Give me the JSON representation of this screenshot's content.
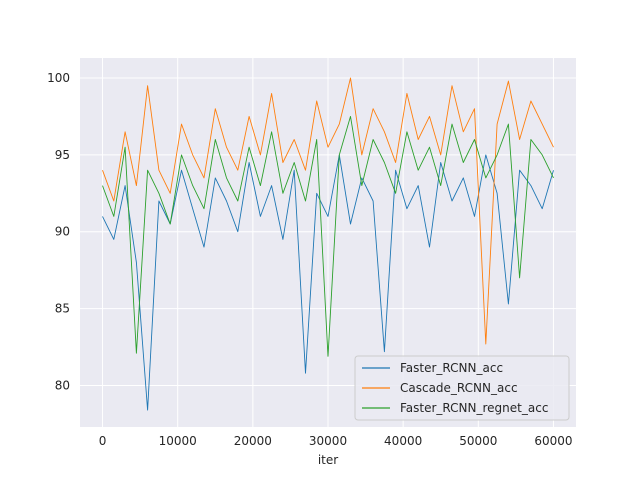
{
  "chart_data": {
    "type": "line",
    "title": "",
    "xlabel": "iter",
    "ylabel": "",
    "xlim": [
      -3000,
      63000
    ],
    "ylim": [
      77.3,
      101.3
    ],
    "xticks": [
      0,
      10000,
      20000,
      30000,
      40000,
      50000,
      60000
    ],
    "yticks": [
      80,
      85,
      90,
      95,
      100
    ],
    "grid": true,
    "legend_position": "lower-right",
    "background": "#eaeaf2",
    "series": [
      {
        "name": "Faster_RCNN_acc",
        "color": "#1f77b4",
        "x": [
          0,
          1500,
          3000,
          4500,
          6000,
          7500,
          9000,
          10500,
          12000,
          13500,
          15000,
          16500,
          18000,
          19500,
          21000,
          22500,
          24000,
          25500,
          27000,
          28500,
          30000,
          31500,
          33000,
          34500,
          36000,
          37500,
          39000,
          40500,
          42000,
          43500,
          45000,
          46500,
          48000,
          49500,
          51000,
          52500,
          54000,
          55500,
          57000,
          58500,
          60000
        ],
        "y": [
          91.0,
          89.5,
          93.0,
          88.0,
          78.4,
          92.0,
          90.5,
          94.0,
          91.5,
          89.0,
          93.5,
          92.0,
          90.0,
          94.5,
          91.0,
          93.0,
          89.5,
          94.0,
          80.8,
          92.5,
          91.0,
          95.0,
          90.5,
          93.5,
          92.0,
          82.2,
          94.0,
          91.5,
          93.0,
          89.0,
          94.5,
          92.0,
          93.5,
          91.0,
          95.0,
          92.5,
          85.3,
          94.0,
          93.0,
          91.5,
          94.0
        ]
      },
      {
        "name": "Cascade_RCNN_acc",
        "color": "#ff7f0e",
        "x": [
          0,
          1500,
          3000,
          4500,
          6000,
          7500,
          9000,
          10500,
          12000,
          13500,
          15000,
          16500,
          18000,
          19500,
          21000,
          22500,
          24000,
          25500,
          27000,
          28500,
          30000,
          31500,
          33000,
          34500,
          36000,
          37500,
          39000,
          40500,
          42000,
          43500,
          45000,
          46500,
          48000,
          49500,
          51000,
          52500,
          54000,
          55500,
          57000,
          58500,
          60000
        ],
        "y": [
          94.0,
          92.0,
          96.5,
          93.0,
          99.5,
          94.0,
          92.5,
          97.0,
          95.0,
          93.5,
          98.0,
          95.5,
          94.0,
          97.5,
          95.0,
          99.0,
          94.5,
          96.0,
          94.0,
          98.5,
          95.5,
          97.0,
          100.0,
          95.0,
          98.0,
          96.5,
          94.5,
          99.0,
          96.0,
          97.5,
          95.0,
          99.5,
          96.5,
          98.0,
          82.7,
          97.0,
          99.8,
          96.0,
          98.5,
          97.0,
          95.5
        ]
      },
      {
        "name": "Faster_RCNN_regnet_acc",
        "color": "#2ca02c",
        "x": [
          0,
          1500,
          3000,
          4500,
          6000,
          7500,
          9000,
          10500,
          12000,
          13500,
          15000,
          16500,
          18000,
          19500,
          21000,
          22500,
          24000,
          25500,
          27000,
          28500,
          30000,
          31500,
          33000,
          34500,
          36000,
          37500,
          39000,
          40500,
          42000,
          43500,
          45000,
          46500,
          48000,
          49500,
          51000,
          52500,
          54000,
          55500,
          57000,
          58500,
          60000
        ],
        "y": [
          93.0,
          91.0,
          95.5,
          82.1,
          94.0,
          92.5,
          90.5,
          95.0,
          93.0,
          91.5,
          96.0,
          93.5,
          92.0,
          95.5,
          93.0,
          96.5,
          92.5,
          94.5,
          92.0,
          96.0,
          81.9,
          95.0,
          97.5,
          93.0,
          96.0,
          94.5,
          92.5,
          96.5,
          94.0,
          95.5,
          93.0,
          97.0,
          94.5,
          96.0,
          93.5,
          95.0,
          97.0,
          87.0,
          96.0,
          95.0,
          93.5
        ]
      }
    ]
  }
}
